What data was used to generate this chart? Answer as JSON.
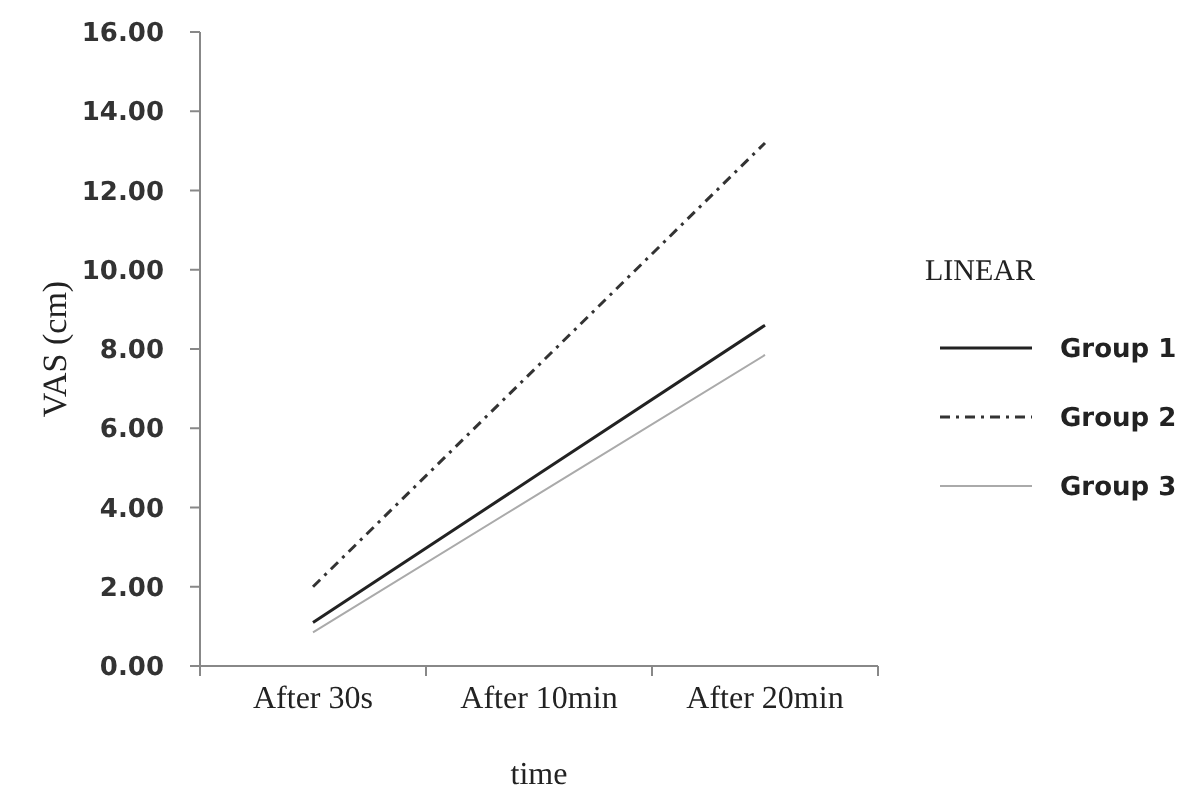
{
  "chart_data": {
    "type": "line",
    "xlabel": "time",
    "ylabel": "VAS (cm)",
    "legend_title": "LINEAR",
    "categories": [
      "After 30s",
      "After 10min",
      "After 20min"
    ],
    "series": [
      {
        "name": "Group 1",
        "color": "#222222",
        "line_style": "solid",
        "values": [
          1.1,
          4.85,
          8.6
        ]
      },
      {
        "name": "Group 2",
        "color": "#333333",
        "line_style": "dashdot",
        "values": [
          2.0,
          7.6,
          13.2
        ]
      },
      {
        "name": "Group 3",
        "color": "#aaaaaa",
        "line_style": "solid",
        "values": [
          0.85,
          4.35,
          7.85
        ]
      }
    ],
    "ylim": [
      0,
      16
    ],
    "yticks": [
      {
        "value": 0,
        "label": "0.00"
      },
      {
        "value": 2,
        "label": "2.00"
      },
      {
        "value": 4,
        "label": "4.00"
      },
      {
        "value": 6,
        "label": "6.00"
      },
      {
        "value": 8,
        "label": "8.00"
      },
      {
        "value": 10,
        "label": "10.00"
      },
      {
        "value": 12,
        "label": "12.00"
      },
      {
        "value": 14,
        "label": "14.00"
      },
      {
        "value": 16,
        "label": "16.00"
      }
    ],
    "grid": false,
    "legend": "right"
  }
}
